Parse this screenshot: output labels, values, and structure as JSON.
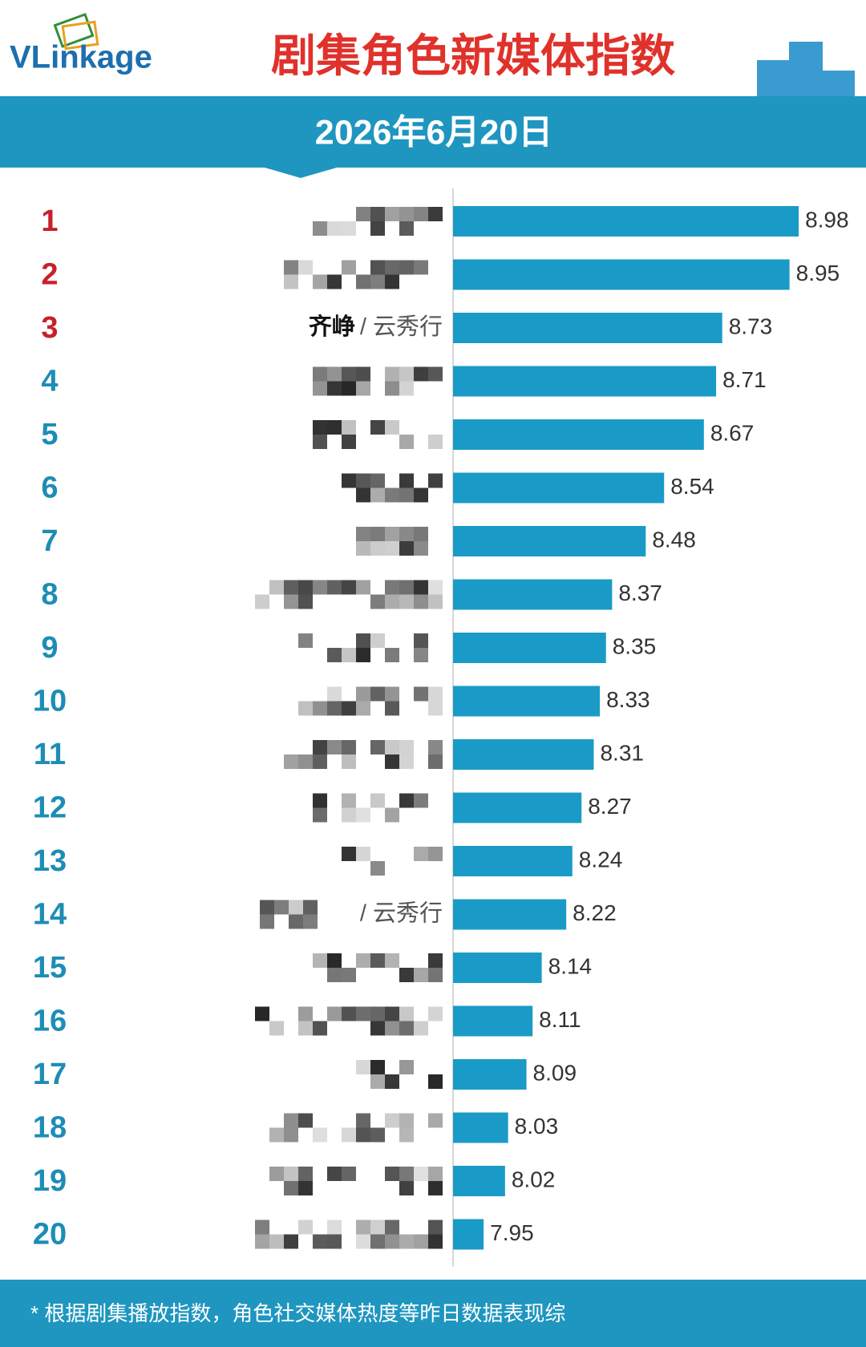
{
  "chart_data": {
    "type": "bar",
    "orientation": "horizontal",
    "logo": "VLinkage",
    "title": "剧集角色新媒体指数",
    "subtitle": "2026年6月20日",
    "footnote": "* 根据剧集播放指数，角色社交媒体热度等昨日数据表现综",
    "categories": [
      1,
      2,
      3,
      4,
      5,
      6,
      7,
      8,
      9,
      10,
      11,
      12,
      13,
      14,
      15,
      16,
      17,
      18,
      19,
      20
    ],
    "roles": [
      null,
      null,
      "齐峥",
      null,
      null,
      null,
      null,
      null,
      null,
      null,
      null,
      null,
      null,
      null,
      null,
      null,
      null,
      null,
      null,
      null
    ],
    "dramas": [
      null,
      null,
      "/ 云秀行",
      null,
      null,
      null,
      null,
      null,
      null,
      null,
      null,
      null,
      null,
      "/ 云秀行",
      null,
      null,
      null,
      null,
      null,
      null
    ],
    "values": [
      8.98,
      8.95,
      8.73,
      8.71,
      8.67,
      8.54,
      8.48,
      8.37,
      8.35,
      8.33,
      8.31,
      8.27,
      8.24,
      8.22,
      8.14,
      8.11,
      8.09,
      8.03,
      8.02,
      7.95
    ],
    "xlim": [
      7.85,
      9.2
    ],
    "color": "#1a9bc7",
    "rank_colors": [
      "#c8202a",
      "#c8202a",
      "#c8202a",
      "#1d8db5",
      "#1d8db5",
      "#1d8db5",
      "#1d8db5",
      "#1d8db5",
      "#1d8db5",
      "#1d8db5",
      "#1d8db5",
      "#1d8db5",
      "#1d8db5",
      "#1d8db5",
      "#1d8db5",
      "#1d8db5",
      "#1d8db5",
      "#1d8db5",
      "#1d8db5",
      "#1d8db5"
    ],
    "title_color": "#e0312b",
    "band_color": "#1e96c0"
  }
}
